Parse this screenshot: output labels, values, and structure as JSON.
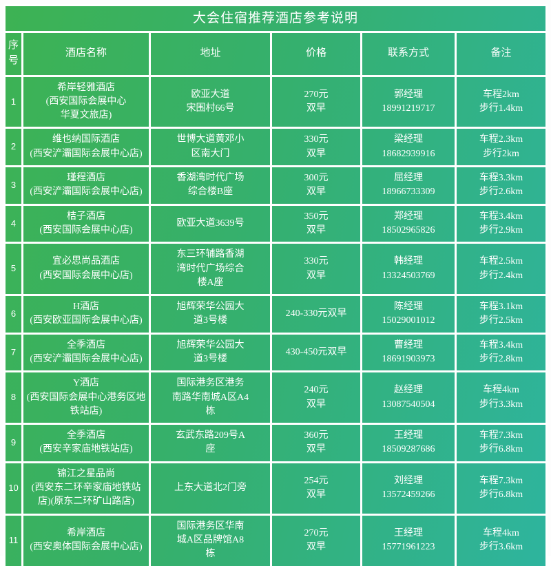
{
  "table": {
    "title": "大会住宿推荐酒店参考说明",
    "columns": [
      "序号",
      "酒店名称",
      "地址",
      "价格",
      "联系方式",
      "备注"
    ],
    "rows": [
      {
        "no": "1",
        "name": "希岸轻雅酒店\n(西安国际会展中心\n华夏文旅店)",
        "address": "欧亚大道\n宋围村66号",
        "price": "270元\n双早",
        "contact": "郭经理\n18991219717",
        "note": "车程2km\n步行1.4km"
      },
      {
        "no": "2",
        "name": "维也纳国际酒店\n(西安浐灞国际会展中心店)",
        "address": "世博大道黄邓小\n区南大门",
        "price": "330元\n双早",
        "contact": "梁经理\n18682939916",
        "note": "车程2.3km\n步行2km"
      },
      {
        "no": "3",
        "name": "瑾程酒店\n(西安浐灞国际会展中心店)",
        "address": "香湖湾时代广场\n综合楼B座",
        "price": "300元\n双早",
        "contact": "屈经理\n18966733309",
        "note": "车程3.3km\n步行2.6km"
      },
      {
        "no": "4",
        "name": "桔子酒店\n(西安国际会展中心店)",
        "address": "欧亚大道3639号",
        "price": "350元\n双早",
        "contact": "郑经理\n18502965826",
        "note": "车程3.4km\n步行2.9km"
      },
      {
        "no": "5",
        "name": "宜必思尚品酒店\n(西安国际会展中心店)",
        "address": "东三环辅路香湖\n湾时代广场综合\n楼A座",
        "price": "330元\n双早",
        "contact": "韩经理\n13324503769",
        "note": "车程2.5km\n步行2.4km"
      },
      {
        "no": "6",
        "name": "H酒店\n(西安欧亚国际会展中心店)",
        "address": "旭辉荣华公园大\n道3号楼",
        "price": "240-330元双早",
        "contact": "陈经理\n15029001012",
        "note": "车程3.1km\n步行2.5km"
      },
      {
        "no": "7",
        "name": "全季酒店\n(西安浐灞国际会展中心店)",
        "address": "旭辉荣华公园大\n道3号楼",
        "price": "430-450元双早",
        "contact": "曹经理\n18691903973",
        "note": "车程3.4km\n步行2.8km"
      },
      {
        "no": "8",
        "name": "Y酒店\n(西安国际会展中心港务区地\n铁站店)",
        "address": "国际港务区港务\n南路华南城A区A4\n栋",
        "price": "240元\n双早",
        "contact": "赵经理\n13087540504",
        "note": "车程4km\n步行3.3km"
      },
      {
        "no": "9",
        "name": "全季酒店\n(西安辛家庙地铁站店)",
        "address": "玄武东路209号A\n座",
        "price": "360元\n双早",
        "contact": "王经理\n18509287686",
        "note": "车程7.3km\n步行6.8km"
      },
      {
        "no": "10",
        "name": "锦江之星品尚\n(西安东二环辛家庙地铁站\n店)(原东二环矿山路店)",
        "address": "上东大道北2门旁",
        "price": "254元\n双早",
        "contact": "刘经理\n13572459266",
        "note": "车程7.3km\n步行6.8km"
      },
      {
        "no": "11",
        "name": "希岸酒店\n(西安奥体国际会展中心店)",
        "address": "国际港务区华南\n城A区品牌馆A8\n栋",
        "price": "270元\n双早",
        "contact": "王经理\n15771961223",
        "note": "车程4km\n步行3.6km"
      }
    ]
  },
  "colors": {
    "gradient_start": "#3db253",
    "gradient_end": "#2eb49e",
    "grid_line": "#ffffff",
    "text": "#ffffff"
  }
}
